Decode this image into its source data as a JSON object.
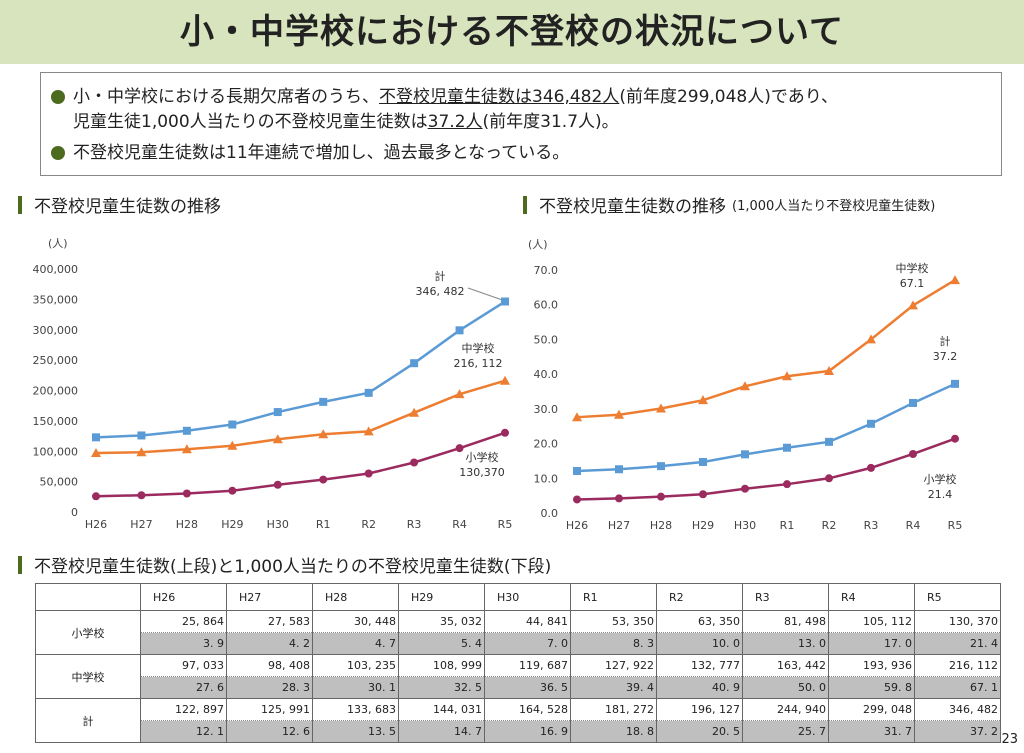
{
  "title": "小・中学校における不登校の状況について",
  "summary": {
    "b1_pre": "小・中学校における長期欠席者のうち、",
    "b1_u1": "不登校児童生徒数は346,482人",
    "b1_mid": "(前年度299,048人)であり、",
    "b1_l2pre": "児童生徒1,000人当たりの不登校児童生徒数は",
    "b1_u2": "37.2人",
    "b1_l2post": "(前年度31.7人)。",
    "b2": "不登校児童生徒数は11年連続で増加し、過去最多となっている。"
  },
  "colors": {
    "total": "#5b9bd5",
    "middle": "#ed7d31",
    "elementary": "#9b2b5f",
    "accent": "#4d6b1f",
    "title_bg": "#d8e4bd"
  },
  "chart_data": [
    {
      "type": "line",
      "title": "不登校児童生徒数の推移",
      "ylabel": "(人)",
      "ylim": [
        0,
        400000
      ],
      "yticks": [
        "0",
        "50,000",
        "100,000",
        "150,000",
        "200,000",
        "250,000",
        "300,000",
        "350,000",
        "400,000"
      ],
      "categories": [
        "H26",
        "H27",
        "H28",
        "H29",
        "H30",
        "R1",
        "R2",
        "R3",
        "R4",
        "R5"
      ],
      "series": [
        {
          "name": "計",
          "marker": "square",
          "values": [
            122897,
            125991,
            133683,
            144031,
            164528,
            181272,
            196127,
            244940,
            299048,
            346482
          ],
          "label": "346, 482"
        },
        {
          "name": "中学校",
          "marker": "triangle",
          "values": [
            97033,
            98408,
            103235,
            108999,
            119687,
            127922,
            132777,
            163442,
            193936,
            216112
          ],
          "label": "216, 112"
        },
        {
          "name": "小学校",
          "marker": "circle",
          "values": [
            25864,
            27583,
            30448,
            35032,
            44841,
            53350,
            63350,
            81498,
            105112,
            130370
          ],
          "label": "130,370"
        }
      ]
    },
    {
      "type": "line",
      "title": "不登校児童生徒数の推移",
      "subtitle": "(1,000人当たり不登校児童生徒数)",
      "ylabel": "(人)",
      "ylim": [
        0,
        70
      ],
      "yticks": [
        "0.0",
        "10.0",
        "20.0",
        "30.0",
        "40.0",
        "50.0",
        "60.0",
        "70.0"
      ],
      "categories": [
        "H26",
        "H27",
        "H28",
        "H29",
        "H30",
        "R1",
        "R2",
        "R3",
        "R4",
        "R5"
      ],
      "series": [
        {
          "name": "中学校",
          "marker": "triangle",
          "values": [
            27.6,
            28.3,
            30.1,
            32.5,
            36.5,
            39.4,
            40.9,
            50.0,
            59.8,
            67.1
          ],
          "label": "67.1"
        },
        {
          "name": "計",
          "marker": "square",
          "values": [
            12.1,
            12.6,
            13.5,
            14.7,
            16.9,
            18.8,
            20.5,
            25.7,
            31.7,
            37.2
          ],
          "label": "37.2"
        },
        {
          "name": "小学校",
          "marker": "circle",
          "values": [
            3.9,
            4.2,
            4.7,
            5.4,
            7.0,
            8.3,
            10.0,
            13.0,
            17.0,
            21.4
          ],
          "label": "21.4"
        }
      ]
    }
  ],
  "table": {
    "title": "不登校児童生徒数(上段)と1,000人当たりの不登校児童生徒数(下段)",
    "headers": [
      "H26",
      "H27",
      "H28",
      "H29",
      "H30",
      "R1",
      "R2",
      "R3",
      "R4",
      "R5"
    ],
    "rows": [
      {
        "label": "小学校",
        "counts": [
          "25, 864",
          "27, 583",
          "30, 448",
          "35, 032",
          "44, 841",
          "53, 350",
          "63, 350",
          "81, 498",
          "105, 112",
          "130, 370"
        ],
        "rates": [
          "3. 9",
          "4. 2",
          "4. 7",
          "5. 4",
          "7. 0",
          "8. 3",
          "10. 0",
          "13. 0",
          "17. 0",
          "21. 4"
        ]
      },
      {
        "label": "中学校",
        "counts": [
          "97, 033",
          "98, 408",
          "103, 235",
          "108, 999",
          "119, 687",
          "127, 922",
          "132, 777",
          "163, 442",
          "193, 936",
          "216, 112"
        ],
        "rates": [
          "27. 6",
          "28. 3",
          "30. 1",
          "32. 5",
          "36. 5",
          "39. 4",
          "40. 9",
          "50. 0",
          "59. 8",
          "67. 1"
        ]
      },
      {
        "label": "計",
        "counts": [
          "122, 897",
          "125, 991",
          "133, 683",
          "144, 031",
          "164, 528",
          "181, 272",
          "196, 127",
          "244, 940",
          "299, 048",
          "346, 482"
        ],
        "rates": [
          "12. 1",
          "12. 6",
          "13. 5",
          "14. 7",
          "16. 9",
          "18. 8",
          "20. 5",
          "25. 7",
          "31. 7",
          "37. 2"
        ]
      }
    ]
  },
  "page_number": "23"
}
